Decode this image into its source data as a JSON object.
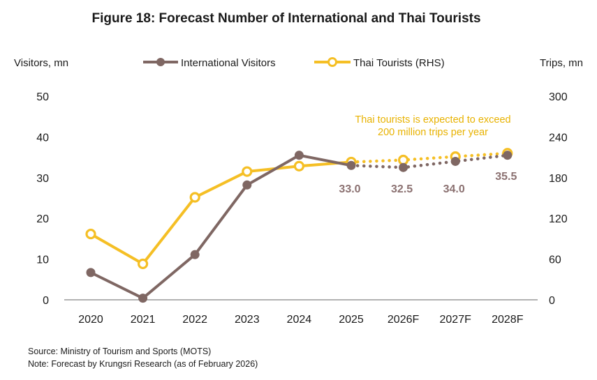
{
  "chart_data": {
    "type": "line",
    "title": "Figure 18: Forecast Number of International and Thai Tourists",
    "ylabel_left": "Visitors, mn",
    "ylabel_right": "Trips, mn",
    "categories": [
      "2020",
      "2021",
      "2022",
      "2023",
      "2024",
      "2025",
      "2026F",
      "2027F",
      "2028F"
    ],
    "y_left": {
      "ylim": [
        0,
        50
      ],
      "ticks": [
        0,
        10,
        20,
        30,
        40,
        50
      ]
    },
    "y_right": {
      "ylim": [
        0,
        300
      ],
      "ticks": [
        0,
        60,
        120,
        180,
        240,
        300
      ]
    },
    "grid": false,
    "legend_position": "top",
    "forecast_start_index": 5,
    "series": [
      {
        "name": "International Visitors",
        "axis": "left",
        "color": "#7f6763",
        "values": [
          6.7,
          0.4,
          11.1,
          28.2,
          35.5,
          33.0,
          32.5,
          34.0,
          35.5
        ],
        "data_labels": {
          "5": "33.0",
          "6": "32.5",
          "7": "34.0",
          "8": "35.5"
        }
      },
      {
        "name": "Thai Tourists (RHS)",
        "axis": "right",
        "color": "#f5bf25",
        "values": [
          97,
          53,
          151,
          189,
          197,
          203,
          206,
          211,
          216
        ]
      }
    ],
    "annotation": {
      "lines": [
        "Thai tourists is expected to exceed",
        "200 million trips per year"
      ],
      "color": "#e8b200"
    }
  },
  "footnotes": {
    "source": "Source: Ministry of Tourism and Sports (MOTS)",
    "note": "Note: Forecast by Krungsri Research (as of February 2026)"
  }
}
